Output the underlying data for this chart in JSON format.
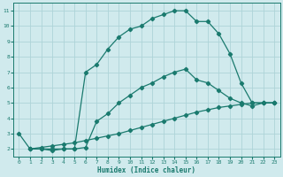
{
  "line1_x": [
    0,
    1,
    2,
    3,
    4,
    5,
    6,
    7,
    8,
    9,
    10,
    11,
    12,
    13,
    14,
    15,
    16,
    17,
    18,
    19,
    20,
    21,
    22,
    23
  ],
  "line1_y": [
    3,
    2,
    2,
    2.0,
    2.0,
    2.0,
    7.0,
    7.5,
    8.5,
    9.3,
    9.8,
    10.0,
    10.5,
    10.75,
    11,
    11,
    10.3,
    10.3,
    9.5,
    8.2,
    6.3,
    5.0,
    5.0,
    5.0
  ],
  "line2_x": [
    1,
    2,
    3,
    4,
    5,
    6,
    7,
    8,
    9,
    10,
    11,
    12,
    13,
    14,
    15,
    16,
    17,
    18,
    19,
    20,
    21,
    22,
    23
  ],
  "line2_y": [
    2,
    2.0,
    1.9,
    2.0,
    2.0,
    2.1,
    3.8,
    4.3,
    5.0,
    5.5,
    6.0,
    6.3,
    6.7,
    7.0,
    7.2,
    6.5,
    6.3,
    5.8,
    5.3,
    5.0,
    4.8,
    5.0,
    5.0
  ],
  "line3_x": [
    1,
    2,
    3,
    4,
    5,
    6,
    7,
    8,
    9,
    10,
    11,
    12,
    13,
    14,
    15,
    16,
    17,
    18,
    19,
    20,
    21,
    22,
    23
  ],
  "line3_y": [
    2,
    2.1,
    2.2,
    2.3,
    2.4,
    2.55,
    2.7,
    2.85,
    3.0,
    3.2,
    3.4,
    3.6,
    3.8,
    4.0,
    4.2,
    4.4,
    4.55,
    4.7,
    4.8,
    4.9,
    5.0,
    5.0,
    5.0
  ],
  "line_color": "#1a7a6e",
  "bg_color": "#d0eaed",
  "grid_color": "#aed4d8",
  "xlabel": "Humidex (Indice chaleur)",
  "ylim": [
    1.5,
    11.5
  ],
  "xlim": [
    -0.5,
    23.5
  ],
  "yticks": [
    2,
    3,
    4,
    5,
    6,
    7,
    8,
    9,
    10,
    11
  ],
  "xticks": [
    0,
    1,
    2,
    3,
    4,
    5,
    6,
    7,
    8,
    9,
    10,
    11,
    12,
    13,
    14,
    15,
    16,
    17,
    18,
    19,
    20,
    21,
    22,
    23
  ],
  "marker": "D",
  "markersize": 2.2,
  "linewidth": 0.9
}
